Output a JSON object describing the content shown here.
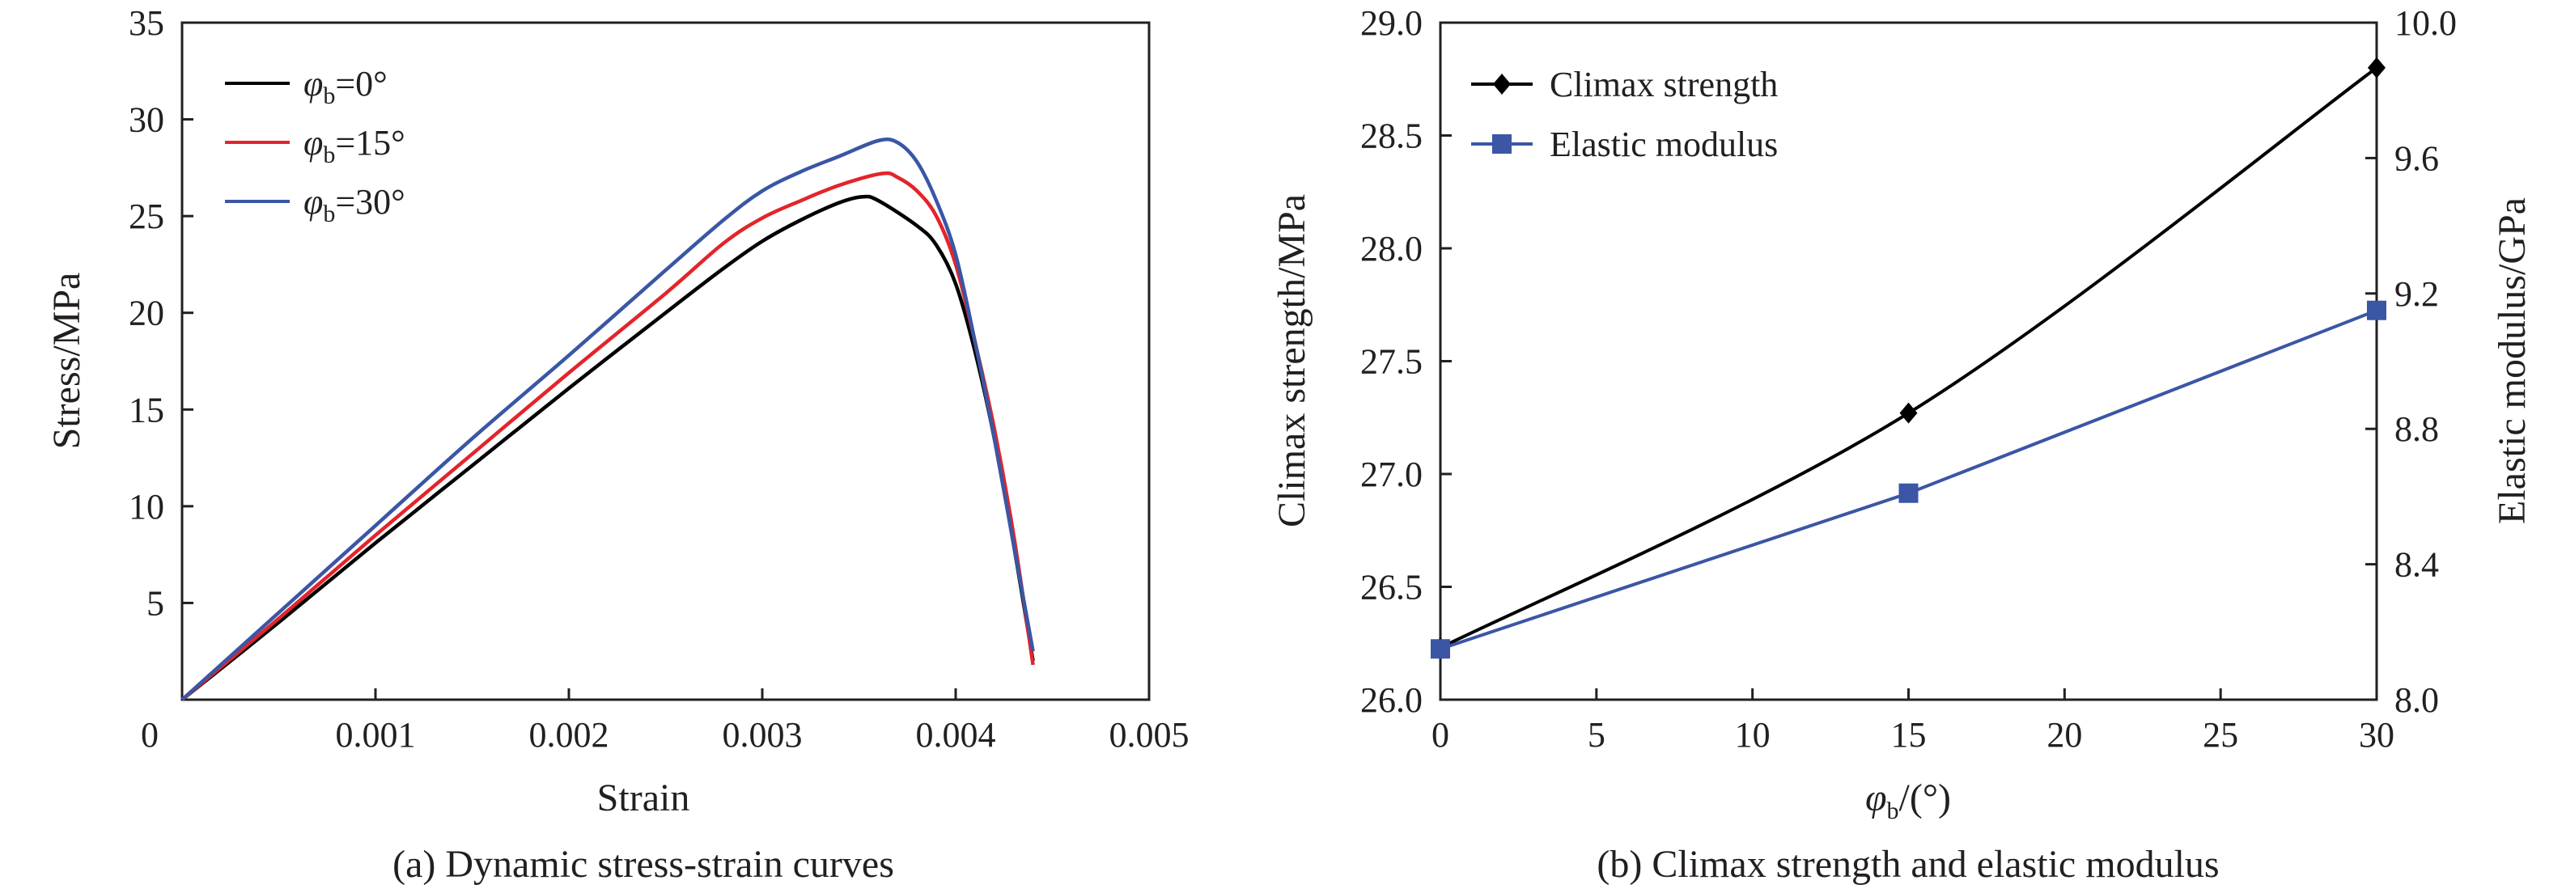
{
  "chart_data": [
    {
      "panel": "a",
      "type": "line",
      "caption": "(a) Dynamic stress-strain curves",
      "xlabel": "Strain",
      "ylabel": "Stress/MPa",
      "xlim": [
        0,
        0.005
      ],
      "ylim": [
        0,
        35
      ],
      "x_ticks": [
        "0",
        "0.001",
        "0.002",
        "0.003",
        "0.004",
        "0.005"
      ],
      "y_ticks": [
        "5",
        "10",
        "15",
        "20",
        "25",
        "30",
        "35"
      ],
      "grid": false,
      "legend_position": "top-left",
      "series": [
        {
          "name": "φb=0°",
          "legend_symbol": "φ",
          "legend_sub": "b",
          "legend_rest": "=0°",
          "color": "#000000",
          "points": [
            [
              0,
              0
            ],
            [
              0.0005,
              4.0
            ],
            [
              0.001,
              8.1
            ],
            [
              0.0015,
              12.1
            ],
            [
              0.002,
              16.1
            ],
            [
              0.0025,
              20.0
            ],
            [
              0.0028,
              22.3
            ],
            [
              0.003,
              23.7
            ],
            [
              0.0032,
              24.8
            ],
            [
              0.0034,
              25.7
            ],
            [
              0.00352,
              26.0
            ],
            [
              0.0036,
              25.8
            ],
            [
              0.0038,
              24.5
            ],
            [
              0.0039,
              23.5
            ],
            [
              0.004,
              21.5
            ],
            [
              0.0041,
              18.0
            ],
            [
              0.0042,
              13.5
            ],
            [
              0.0043,
              8.0
            ],
            [
              0.0044,
              2.0
            ]
          ]
        },
        {
          "name": "φb=15°",
          "legend_symbol": "φ",
          "legend_sub": "b",
          "legend_rest": "=15°",
          "color": "#e3242b",
          "points": [
            [
              0,
              0
            ],
            [
              0.0005,
              4.2
            ],
            [
              0.001,
              8.5
            ],
            [
              0.0015,
              12.7
            ],
            [
              0.002,
              16.9
            ],
            [
              0.0025,
              21.0
            ],
            [
              0.0028,
              23.6
            ],
            [
              0.003,
              24.9
            ],
            [
              0.0032,
              25.8
            ],
            [
              0.0034,
              26.6
            ],
            [
              0.00362,
              27.2
            ],
            [
              0.0037,
              27.0
            ],
            [
              0.0038,
              26.3
            ],
            [
              0.0039,
              25.0
            ],
            [
              0.004,
              22.5
            ],
            [
              0.0041,
              18.5
            ],
            [
              0.0042,
              14.0
            ],
            [
              0.0043,
              8.5
            ],
            [
              0.0044,
              1.8
            ]
          ]
        },
        {
          "name": "φb=30°",
          "legend_symbol": "φ",
          "legend_sub": "b",
          "legend_rest": "=30°",
          "color": "#3a56a5",
          "points": [
            [
              0,
              0
            ],
            [
              0.0005,
              4.5
            ],
            [
              0.001,
              9.0
            ],
            [
              0.0015,
              13.5
            ],
            [
              0.002,
              17.8
            ],
            [
              0.0025,
              22.2
            ],
            [
              0.0028,
              24.8
            ],
            [
              0.003,
              26.3
            ],
            [
              0.0032,
              27.3
            ],
            [
              0.0034,
              28.1
            ],
            [
              0.0036,
              28.9
            ],
            [
              0.0037,
              28.8
            ],
            [
              0.0038,
              27.8
            ],
            [
              0.0039,
              25.8
            ],
            [
              0.004,
              23.0
            ],
            [
              0.0041,
              18.5
            ],
            [
              0.0042,
              13.5
            ],
            [
              0.0043,
              8.0
            ],
            [
              0.0044,
              2.5
            ]
          ]
        }
      ]
    },
    {
      "panel": "b",
      "type": "line",
      "caption": "(b) Climax strength and elastic modulus",
      "xlabel_symbol": "φ",
      "xlabel_sub": "b",
      "xlabel_rest": "/(°)",
      "ylabel_left": "Climax strength/MPa",
      "ylabel_right": "Elastic modulus/GPa",
      "xlim": [
        0,
        30
      ],
      "ylim_left": [
        26.0,
        29.0
      ],
      "ylim_right": [
        8.0,
        10.0
      ],
      "x_ticks": [
        "0",
        "5",
        "10",
        "15",
        "20",
        "25",
        "30"
      ],
      "y_ticks_left": [
        "26.0",
        "26.5",
        "27.0",
        "27.5",
        "28.0",
        "28.5",
        "29.0"
      ],
      "y_ticks_right": [
        "8.0",
        "8.4",
        "8.8",
        "9.2",
        "9.6",
        "10.0"
      ],
      "grid": false,
      "legend_position": "top-left",
      "series": [
        {
          "name": "Climax strength",
          "axis": "left",
          "marker": "diamond",
          "color": "#000000",
          "x": [
            0,
            15,
            30
          ],
          "values": [
            26.23,
            27.27,
            28.8
          ]
        },
        {
          "name": "Elastic modulus",
          "axis": "right",
          "marker": "square",
          "color": "#3a56a5",
          "x": [
            0,
            15,
            30
          ],
          "values": [
            8.15,
            8.61,
            9.15
          ]
        }
      ]
    }
  ]
}
